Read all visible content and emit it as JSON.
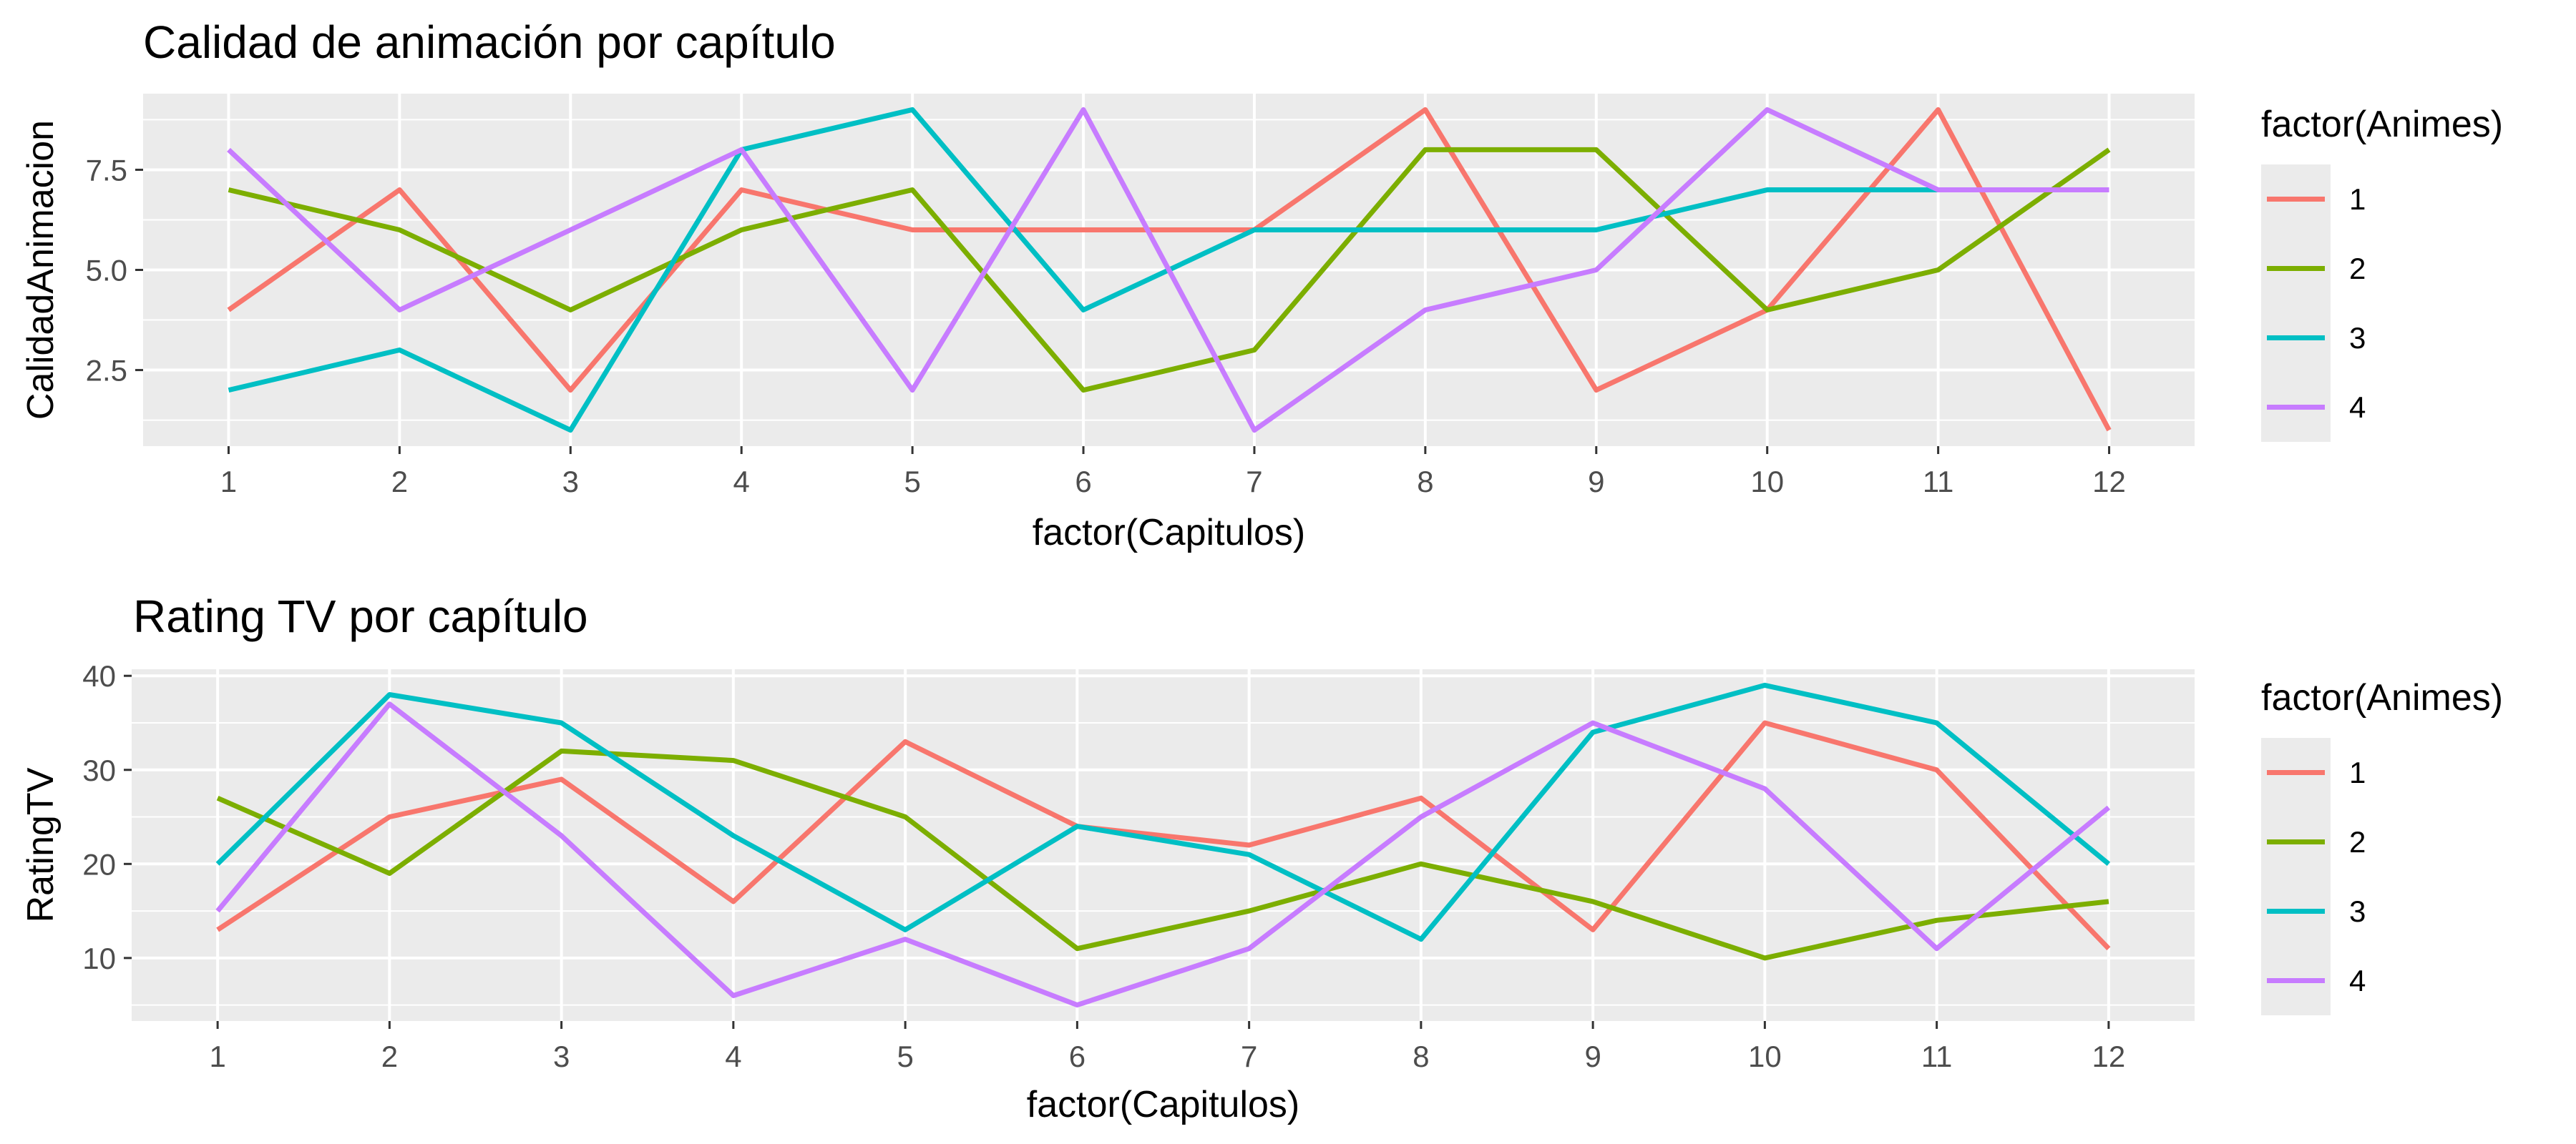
{
  "chart_data": [
    {
      "type": "line",
      "title": "Calidad de animación por capítulo",
      "xlabel": "factor(Capitulos)",
      "ylabel": "CalidadAnimacion",
      "categories": [
        "1",
        "2",
        "3",
        "4",
        "5",
        "6",
        "7",
        "8",
        "9",
        "10",
        "11",
        "12"
      ],
      "ylim": [
        0.6,
        9.4
      ],
      "yticks": [
        2.5,
        5.0,
        7.5
      ],
      "ytick_labels": [
        "2.5",
        "5.0",
        "7.5"
      ],
      "grid": true,
      "legend": {
        "title": "factor(Animes)",
        "position": "right"
      },
      "series": [
        {
          "name": "1",
          "color": "#F8766D",
          "values": [
            4,
            7,
            2,
            7,
            6,
            6,
            6,
            9,
            2,
            4,
            9,
            1
          ]
        },
        {
          "name": "2",
          "color": "#7CAE00",
          "values": [
            7,
            6,
            4,
            6,
            7,
            2,
            3,
            8,
            8,
            4,
            5,
            8
          ]
        },
        {
          "name": "3",
          "color": "#00BFC4",
          "values": [
            2,
            3,
            1,
            8,
            9,
            4,
            6,
            6,
            6,
            7,
            7,
            7
          ]
        },
        {
          "name": "4",
          "color": "#C77CFF",
          "values": [
            8,
            4,
            6,
            8,
            2,
            9,
            1,
            4,
            5,
            9,
            7,
            7
          ]
        }
      ]
    },
    {
      "type": "line",
      "title": "Rating TV por capítulo",
      "xlabel": "factor(Capitulos)",
      "ylabel": "RatingTV",
      "categories": [
        "1",
        "2",
        "3",
        "4",
        "5",
        "6",
        "7",
        "8",
        "9",
        "10",
        "11",
        "12"
      ],
      "ylim": [
        3.3,
        40.7
      ],
      "yticks": [
        10,
        20,
        30,
        40
      ],
      "ytick_labels": [
        "10",
        "20",
        "30",
        "40"
      ],
      "grid": true,
      "legend": {
        "title": "factor(Animes)",
        "position": "right"
      },
      "series": [
        {
          "name": "1",
          "color": "#F8766D",
          "values": [
            13,
            25,
            29,
            16,
            33,
            24,
            22,
            27,
            13,
            35,
            30,
            11
          ]
        },
        {
          "name": "2",
          "color": "#7CAE00",
          "values": [
            27,
            19,
            32,
            31,
            25,
            11,
            15,
            20,
            16,
            10,
            14,
            16
          ]
        },
        {
          "name": "3",
          "color": "#00BFC4",
          "values": [
            20,
            38,
            35,
            23,
            13,
            24,
            21,
            12,
            34,
            39,
            35,
            20
          ]
        },
        {
          "name": "4",
          "color": "#C77CFF",
          "values": [
            15,
            37,
            23,
            6,
            12,
            5,
            11,
            25,
            35,
            28,
            11,
            26
          ]
        }
      ]
    }
  ]
}
